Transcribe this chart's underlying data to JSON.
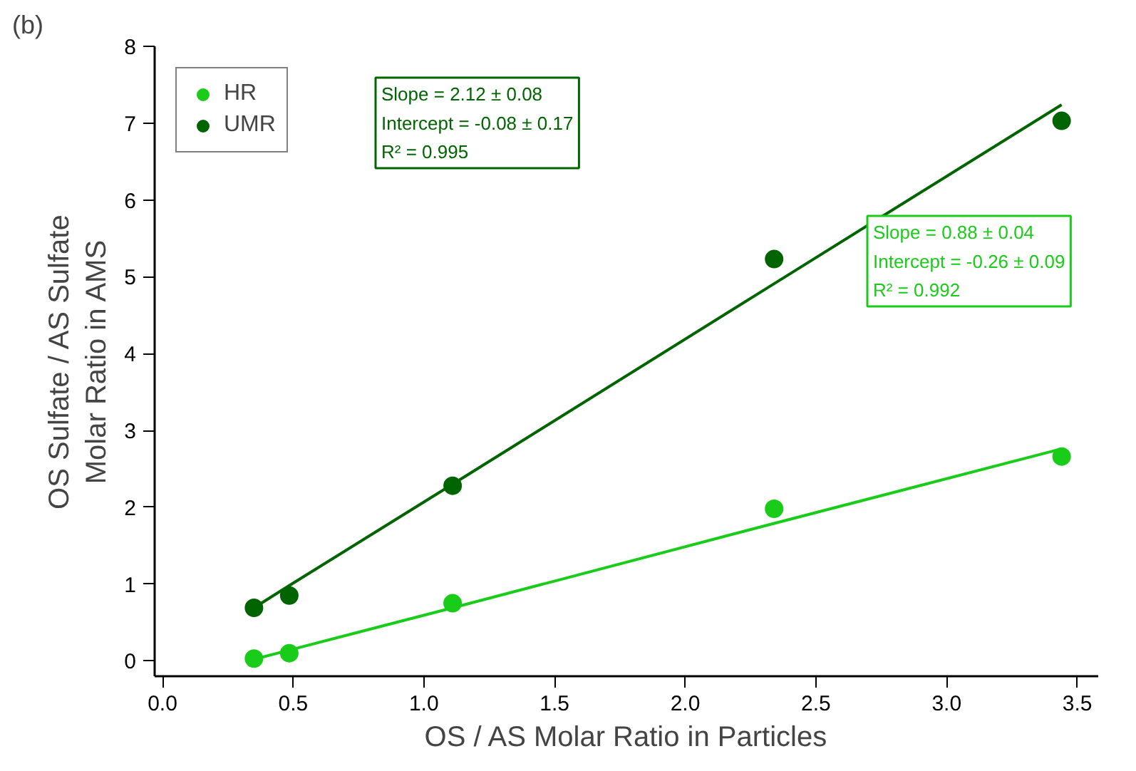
{
  "chart_data": {
    "type": "scatter",
    "xlabel": "OS / AS Molar Ratio in Particles",
    "ylabel": "OS Sulfate / AS Sulfate\nMolar Ratio in AMS",
    "x": [
      0.35,
      0.485,
      1.11,
      2.34,
      3.44
    ],
    "series": [
      {
        "name": "HR",
        "color": "#19cc19",
        "values": [
          0.03,
          0.1,
          0.75,
          1.98,
          2.66
        ]
      },
      {
        "name": "UMR",
        "color": "#006400",
        "values": [
          0.69,
          0.85,
          2.28,
          5.23,
          7.03
        ]
      },
      {
        "type": "line",
        "marker": "none",
        "color": "#19cc19",
        "values": [
          0.02,
          0.14,
          0.69,
          1.79,
          2.76
        ]
      },
      {
        "type": "line",
        "marker": "none",
        "color": "#006400",
        "values": [
          0.69,
          0.98,
          2.3,
          4.91,
          7.24
        ]
      }
    ],
    "xlim": [
      -0.03,
      3.58
    ],
    "ylim": [
      -0.2,
      8
    ],
    "xticks": [
      {
        "value": 0,
        "label": "0.0"
      },
      0.5,
      {
        "value": 1,
        "label": "1.0"
      },
      1.5,
      {
        "value": 2,
        "label": "2.0"
      },
      2.5,
      {
        "value": 3,
        "label": "3.0"
      },
      3.5
    ],
    "yticks": [
      0,
      1,
      2,
      3,
      4,
      5,
      6,
      7,
      8
    ],
    "grid": false,
    "legend": "top left",
    "marker": "circle",
    "annotations": [
      "(b)",
      "Slope = 2.12 ± 0.08\nIntercept = -0.08 ± 0.17\nR² = 0.995",
      "Slope = 0.88 ± 0.04\nIntercept = -0.26 ± 0.09\nR² = 0.992"
    ]
  }
}
